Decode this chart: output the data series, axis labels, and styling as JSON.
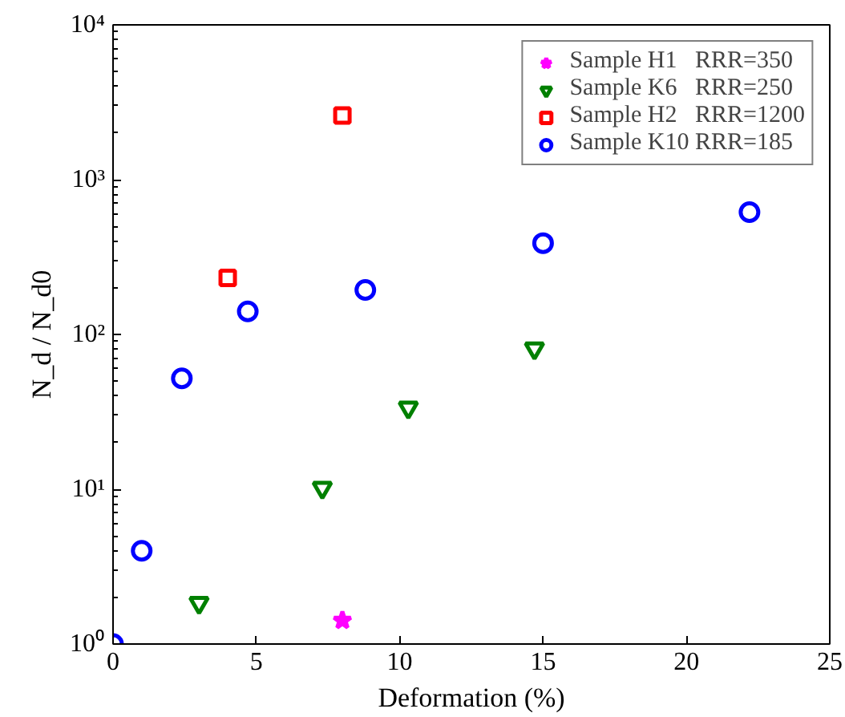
{
  "chart_data": {
    "type": "scatter",
    "xlabel": "Deformation (%)",
    "ylabel": "N_d / N_d0",
    "log": "y",
    "grid": false,
    "legend": "top right",
    "xlim": [
      0,
      25
    ],
    "xticks": [
      0,
      5,
      10,
      15,
      20,
      25
    ],
    "ylim": [
      1,
      10000
    ],
    "yticks": [
      {
        "value": 1,
        "label": "10⁰"
      },
      {
        "value": 10,
        "label": "10¹"
      },
      {
        "value": 100,
        "label": "10²"
      },
      {
        "value": 1000,
        "label": "10³"
      },
      {
        "value": 10000,
        "label": "10⁴"
      }
    ],
    "series": [
      {
        "name": "Sample H1   RRR=350",
        "color": "#ff00ff",
        "marker": "star",
        "x": [
          8
        ],
        "values": [
          1.42
        ]
      },
      {
        "name": "Sample K6   RRR=250",
        "color": "#008000",
        "marker": "triangle",
        "x": [
          3,
          7.3,
          10.3,
          14.7
        ],
        "values": [
          1.84,
          10.2,
          33.6,
          81
        ]
      },
      {
        "name": "Sample H2   RRR=1200",
        "color": "#ff0000",
        "marker": "square",
        "x": [
          4,
          8
        ],
        "values": [
          232,
          2600
        ]
      },
      {
        "name": "Sample K10 RRR=185",
        "color": "#0000ff",
        "marker": "circle",
        "x": [
          0,
          1.0,
          2.4,
          4.7,
          8.8,
          15.0,
          22.2
        ],
        "values": [
          1,
          4.0,
          52,
          141,
          194,
          389,
          617
        ]
      }
    ]
  }
}
